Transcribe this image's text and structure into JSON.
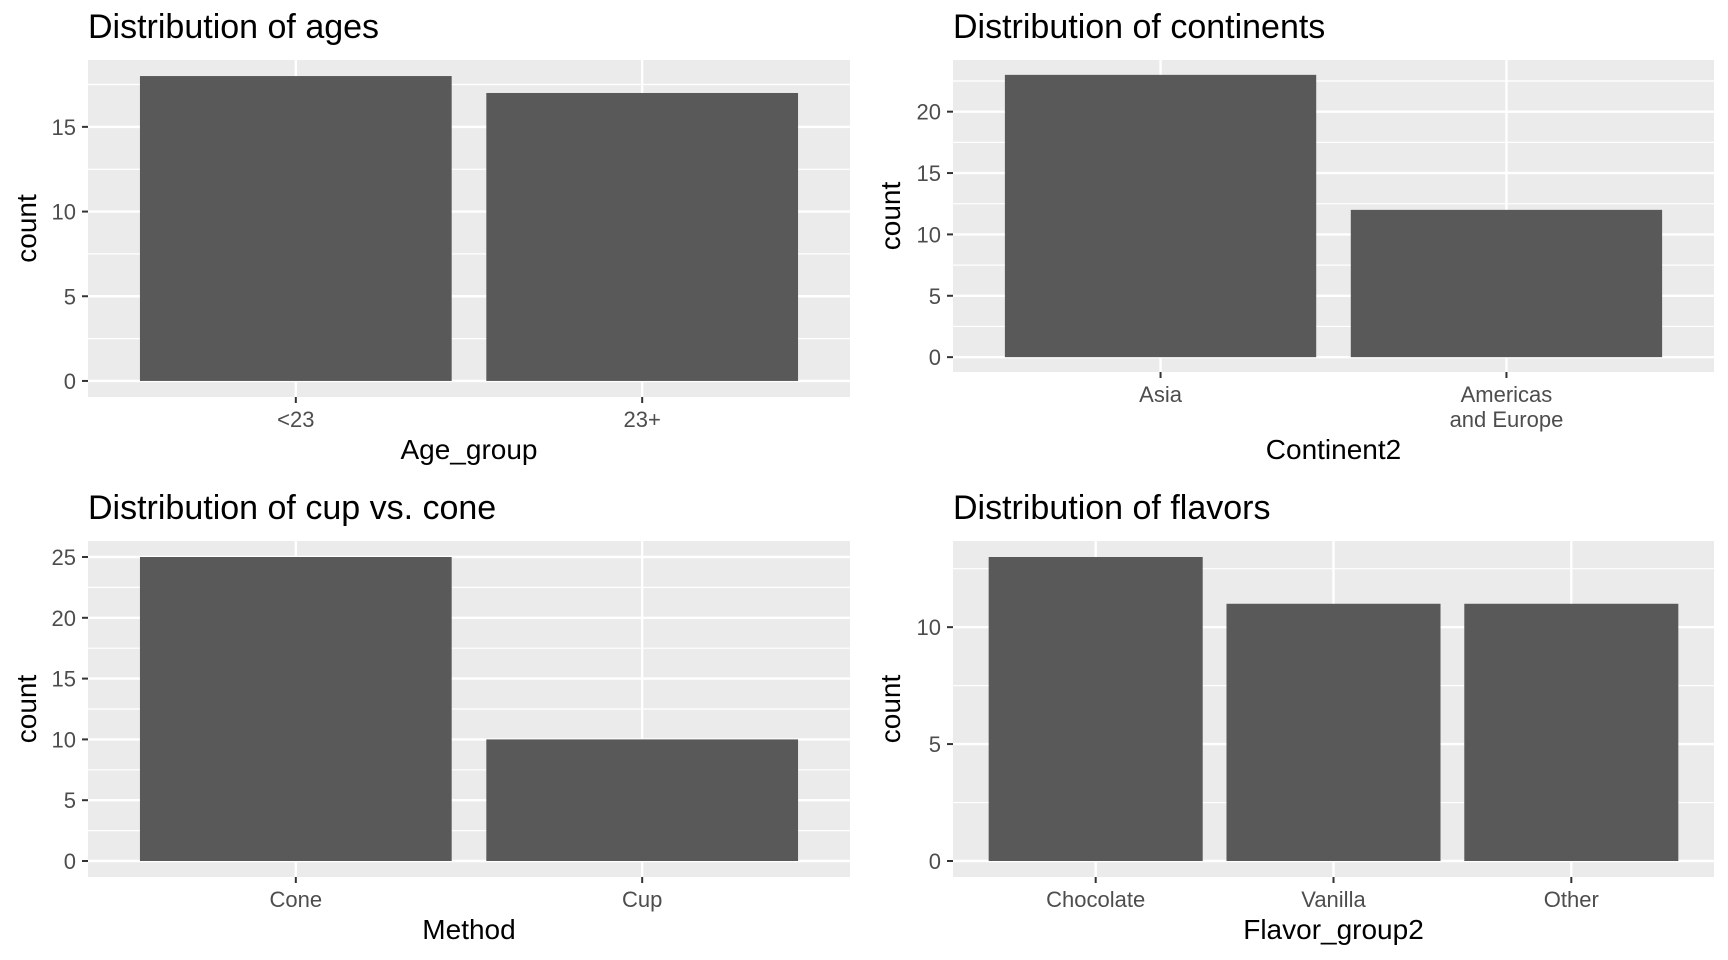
{
  "chart_data": [
    {
      "type": "bar",
      "title": "Distribution of ages",
      "xlabel": "Age_group",
      "ylabel": "count",
      "categories": [
        "<23",
        "23+"
      ],
      "values": [
        18,
        17
      ],
      "ylim": [
        0,
        18.9
      ],
      "yticks": [
        0,
        5,
        10,
        15
      ],
      "grid": true,
      "bar_color": "#595959",
      "panel_color": "#ebebeb"
    },
    {
      "type": "bar",
      "title": "Distribution of continents",
      "xlabel": "Continent2",
      "ylabel": "count",
      "categories": [
        "Asia",
        "Americas\nand Europe"
      ],
      "values": [
        23,
        12
      ],
      "ylim": [
        0,
        24.15
      ],
      "yticks": [
        0,
        5,
        10,
        15,
        20
      ],
      "grid": true,
      "bar_color": "#595959",
      "panel_color": "#ebebeb"
    },
    {
      "type": "bar",
      "title": "Distribution of cup vs. cone",
      "xlabel": "Method",
      "ylabel": "count",
      "categories": [
        "Cone",
        "Cup"
      ],
      "values": [
        25,
        10
      ],
      "ylim": [
        0,
        26.25
      ],
      "yticks": [
        0,
        5,
        10,
        15,
        20,
        25
      ],
      "grid": true,
      "bar_color": "#595959",
      "panel_color": "#ebebeb"
    },
    {
      "type": "bar",
      "title": "Distribution of flavors",
      "xlabel": "Flavor_group2",
      "ylabel": "count",
      "categories": [
        "Chocolate",
        "Vanilla",
        "Other"
      ],
      "values": [
        13,
        11,
        11
      ],
      "ylim": [
        0,
        13.65
      ],
      "yticks": [
        0,
        5,
        10
      ],
      "grid": true,
      "bar_color": "#595959",
      "panel_color": "#ebebeb"
    }
  ]
}
